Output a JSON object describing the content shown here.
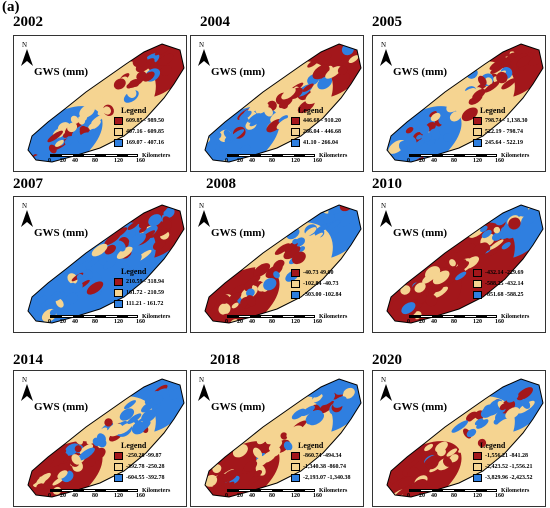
{
  "figure_label": "(a)",
  "colors": {
    "high": "#a3171b",
    "mid": "#f5d491",
    "low": "#2f7fe0"
  },
  "scale": {
    "ticks": [
      "0",
      "20",
      "40",
      "80",
      "120",
      "160"
    ],
    "unit": "Kilometers"
  },
  "panels": [
    {
      "year": "2002",
      "title": "GWS (mm)",
      "legend_title": "Legend",
      "north": "N",
      "classes": [
        "609.85 - 989.50",
        "407.16 - 609.85",
        "169.07 - 407.16"
      ]
    },
    {
      "year": "2004",
      "title": "GWS (mm)",
      "legend_title": "Legend",
      "north": "N",
      "classes": [
        "446.68 - 910.20",
        "266.04 - 446.68",
        "41.10 - 266.04"
      ]
    },
    {
      "year": "2005",
      "title": "GWS (mm)",
      "legend_title": "Legend",
      "north": "N",
      "classes": [
        "798.74 - 1,138.30",
        "522.19 - 798.74",
        "245.64 - 522.19"
      ]
    },
    {
      "year": "2007",
      "title": "GWS (mm)",
      "legend_title": "Legend",
      "north": "N",
      "classes": [
        "210.59 - 318.94",
        "161.72 - 210.59",
        "111.21 - 161.72"
      ]
    },
    {
      "year": "2008",
      "title": "GWS (mm)",
      "legend_title": "",
      "north": "N",
      "classes": [
        "-40.73     49.00",
        "-102.84    -40.73",
        "-303.00    -102.84"
      ]
    },
    {
      "year": "2010",
      "title": "GWS (mm)",
      "legend_title": "",
      "north": "N",
      "classes": [
        "-432.14    -229.69",
        "-588.25    -432.14",
        "-851.68    -588.25"
      ]
    },
    {
      "year": "2014",
      "title": "GWS (mm)",
      "legend_title": "Legend",
      "north": "N",
      "classes": [
        "-250.28     -99.87",
        "-392.78    -250.28",
        "-604.55    -392.78"
      ]
    },
    {
      "year": "2018",
      "title": "GWS (mm)",
      "legend_title": "Legend",
      "north": "N",
      "classes": [
        "-860.74    -494.34",
        "-1,340.38    -860.74",
        "-2,193.07   -1,340.38"
      ]
    },
    {
      "year": "2020",
      "title": "GWS (mm)",
      "legend_title": "Legend",
      "north": "N",
      "classes": [
        "-1,556.21     -841.28",
        "-2,423.52   -1,556.21",
        "-3,829.96   -2,423.52"
      ]
    }
  ]
}
